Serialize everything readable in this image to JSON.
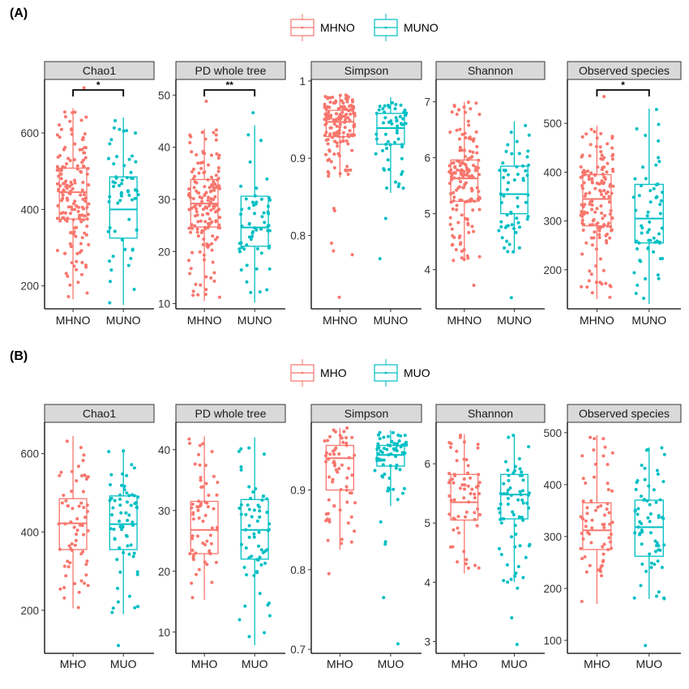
{
  "panels": [
    {
      "label": "(A)",
      "legend": [
        {
          "name": "MHNO",
          "color": "#F8766D"
        },
        {
          "name": "MUNO",
          "color": "#00BFC4"
        }
      ]
    },
    {
      "label": "(B)",
      "legend": [
        {
          "name": "MHO",
          "color": "#F8766D"
        },
        {
          "name": "MUO",
          "color": "#00BFC4"
        }
      ]
    }
  ],
  "chart_data": [
    {
      "type": "box",
      "panel": "(A)",
      "facets": [
        {
          "title": "Chao1",
          "ylim": [
            140,
            740
          ],
          "yticks": [
            200,
            400,
            600
          ],
          "significance": "*",
          "groups": [
            {
              "name": "MHNO",
              "min": 165,
              "q1": 375,
              "median": 445,
              "q3": 508,
              "max": 665,
              "n": 160,
              "outliers": [
                718
              ]
            },
            {
              "name": "MUNO",
              "min": 150,
              "q1": 325,
              "median": 400,
              "q3": 485,
              "max": 640,
              "n": 60,
              "outliers": []
            }
          ]
        },
        {
          "title": "PD whole tree",
          "ylim": [
            9,
            53
          ],
          "yticks": [
            10,
            20,
            30,
            40,
            50
          ],
          "significance": "**",
          "groups": [
            {
              "name": "MHNO",
              "min": 10.5,
              "q1": 24.7,
              "median": 29.2,
              "q3": 33.8,
              "max": 43.5,
              "n": 160,
              "outliers": [
                48.8
              ]
            },
            {
              "name": "MUNO",
              "min": 10.2,
              "q1": 21.0,
              "median": 24.6,
              "q3": 30.6,
              "max": 44.2,
              "n": 60,
              "outliers": [
                46.6
              ]
            }
          ]
        },
        {
          "title": "Simpson",
          "ylim": [
            0.705,
            1.002
          ],
          "yticks": [
            0.8,
            0.9,
            1.0
          ],
          "significance": "",
          "groups": [
            {
              "name": "MHNO",
              "min": 0.875,
              "q1": 0.928,
              "median": 0.947,
              "q3": 0.962,
              "max": 0.982,
              "n": 160,
              "outliers": [
                0.835,
                0.832,
                0.79,
                0.78,
                0.775,
                0.72
              ]
            },
            {
              "name": "MUNO",
              "min": 0.855,
              "q1": 0.918,
              "median": 0.939,
              "q3": 0.958,
              "max": 0.979,
              "n": 60,
              "outliers": [
                0.822,
                0.77
              ]
            }
          ]
        },
        {
          "title": "Shannon",
          "ylim": [
            3.3,
            7.4
          ],
          "yticks": [
            4,
            5,
            6,
            7
          ],
          "significance": "",
          "groups": [
            {
              "name": "MHNO",
              "min": 4.15,
              "q1": 5.22,
              "median": 5.63,
              "q3": 5.96,
              "max": 7.0,
              "n": 160,
              "outliers": [
                3.72
              ]
            },
            {
              "name": "MUNO",
              "min": 4.3,
              "q1": 5.0,
              "median": 5.35,
              "q3": 5.85,
              "max": 6.65,
              "n": 60,
              "outliers": [
                3.5
              ]
            }
          ]
        },
        {
          "title": "Observed species",
          "ylim": [
            120,
            590
          ],
          "yticks": [
            200,
            300,
            400,
            500
          ],
          "significance": "*",
          "groups": [
            {
              "name": "MHNO",
              "min": 140,
              "q1": 290,
              "median": 345,
              "q3": 395,
              "max": 495,
              "n": 160,
              "outliers": [
                555
              ]
            },
            {
              "name": "MUNO",
              "min": 130,
              "q1": 255,
              "median": 305,
              "q3": 375,
              "max": 530,
              "n": 60,
              "outliers": []
            }
          ]
        }
      ]
    },
    {
      "type": "box",
      "panel": "(B)",
      "facets": [
        {
          "title": "Chao1",
          "ylim": [
            90,
            680
          ],
          "yticks": [
            200,
            400,
            600
          ],
          "significance": "",
          "groups": [
            {
              "name": "MHO",
              "min": 205,
              "q1": 355,
              "median": 422,
              "q3": 485,
              "max": 645,
              "n": 65,
              "outliers": []
            },
            {
              "name": "MUO",
              "min": 190,
              "q1": 355,
              "median": 420,
              "q3": 492,
              "max": 612,
              "n": 65,
              "outliers": [
                110
              ]
            }
          ]
        },
        {
          "title": "PD whole tree",
          "ylim": [
            6.5,
            44.5
          ],
          "yticks": [
            10,
            20,
            30,
            40
          ],
          "significance": "",
          "groups": [
            {
              "name": "MHO",
              "min": 15.3,
              "q1": 22.9,
              "median": 26.8,
              "q3": 31.5,
              "max": 42.2,
              "n": 65,
              "outliers": []
            },
            {
              "name": "MUO",
              "min": 7.8,
              "q1": 22.0,
              "median": 26.8,
              "q3": 31.8,
              "max": 42.0,
              "n": 65,
              "outliers": []
            }
          ]
        },
        {
          "title": "Simpson",
          "ylim": [
            0.695,
            0.985
          ],
          "yticks": [
            0.7,
            0.8,
            0.9
          ],
          "significance": "",
          "groups": [
            {
              "name": "MHO",
              "min": 0.825,
              "q1": 0.9,
              "median": 0.94,
              "q3": 0.956,
              "max": 0.978,
              "n": 65,
              "outliers": [
                0.795
              ]
            },
            {
              "name": "MUO",
              "min": 0.88,
              "q1": 0.93,
              "median": 0.944,
              "q3": 0.956,
              "max": 0.975,
              "n": 65,
              "outliers": [
                0.86,
                0.835,
                0.832,
                0.765,
                0.707
              ]
            }
          ]
        },
        {
          "title": "Shannon",
          "ylim": [
            2.8,
            6.7
          ],
          "yticks": [
            3,
            4,
            5,
            6
          ],
          "significance": "",
          "groups": [
            {
              "name": "MHO",
              "min": 4.15,
              "q1": 5.05,
              "median": 5.35,
              "q3": 5.82,
              "max": 6.5,
              "n": 65,
              "outliers": []
            },
            {
              "name": "MUO",
              "min": 4.0,
              "q1": 5.07,
              "median": 5.48,
              "q3": 5.82,
              "max": 6.5,
              "n": 65,
              "outliers": [
                3.9,
                3.4,
                2.95
              ]
            }
          ]
        },
        {
          "title": "Observed species",
          "ylim": [
            75,
            520
          ],
          "yticks": [
            100,
            200,
            300,
            400,
            500
          ],
          "significance": "",
          "groups": [
            {
              "name": "MHO",
              "min": 170,
              "q1": 275,
              "median": 312,
              "q3": 365,
              "max": 495,
              "n": 65,
              "outliers": []
            },
            {
              "name": "MUO",
              "min": 180,
              "q1": 262,
              "median": 318,
              "q3": 370,
              "max": 472,
              "n": 65,
              "outliers": [
                90
              ]
            }
          ]
        }
      ]
    }
  ]
}
